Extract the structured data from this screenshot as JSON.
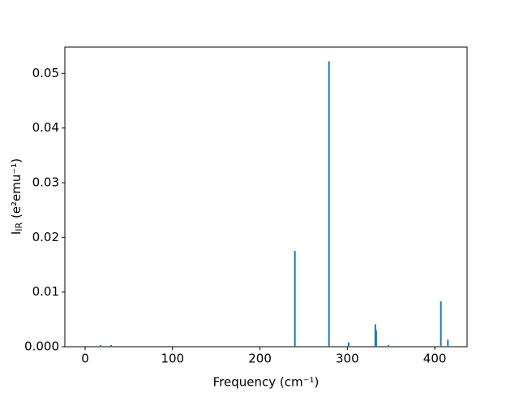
{
  "chart_data": {
    "type": "bar",
    "x": [
      17.6,
      29.7,
      240,
      279,
      301.5,
      332,
      333,
      347,
      407,
      415
    ],
    "values": [
      0.0003,
      0.0003,
      0.0175,
      0.0522,
      0.0008,
      0.0041,
      0.003,
      0.0003,
      0.0083,
      0.0013
    ],
    "color": "#1f77b4",
    "xlabel": "Frequency (cm⁻¹)",
    "ylabel": [
      "I",
      "IR",
      " (e²emu⁻¹)"
    ],
    "xlim": [
      -23.2,
      437
    ],
    "xticks": [
      0,
      100,
      200,
      300,
      400
    ],
    "ylim": [
      0,
      0.0548
    ],
    "yticks": [
      {
        "value": 0,
        "label": "0.000"
      },
      {
        "value": 0.01,
        "label": "0.01"
      },
      {
        "value": 0.02,
        "label": "0.02"
      },
      {
        "value": 0.03,
        "label": "0.03"
      },
      {
        "value": 0.04,
        "label": "0.04"
      },
      {
        "value": 0.05,
        "label": "0.05"
      }
    ],
    "grid": false
  }
}
